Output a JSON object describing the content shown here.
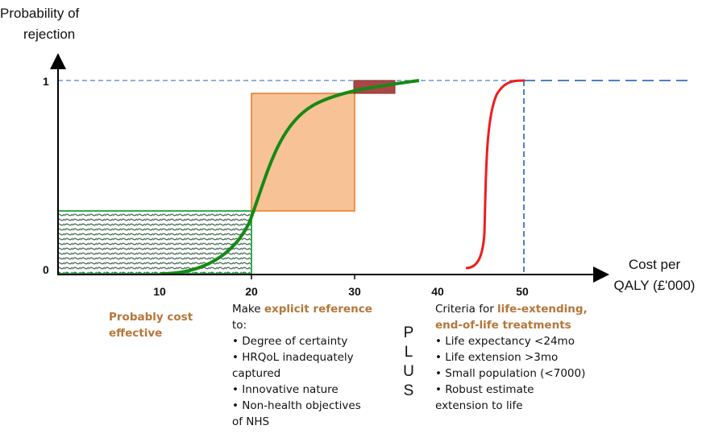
{
  "y_axis_title": [
    "Probability of",
    "rejection"
  ],
  "x_axis_title": [
    "Cost per",
    "QALY (£'000)"
  ],
  "y_ticks": [
    "0",
    "1"
  ],
  "x_ticks": [
    "10",
    "20",
    "30",
    "40",
    "50"
  ],
  "colors": {
    "green_curve": "#158a15",
    "green_region": "#2fae4f",
    "orange_fill": "#f7c296",
    "orange_edge": "#e57a24",
    "red_box": "#a94747",
    "red_curve": "#ee1d1d",
    "dashed": "#4f7fc9",
    "accent_text": "#b5763a"
  },
  "left_box": {
    "lines": [
      "Probably cost",
      "effective"
    ]
  },
  "middle_box": {
    "intro": "Make ",
    "highlight": "explicit reference",
    "line2": "to:",
    "bullets": [
      "• Degree of certainty",
      "• HRQoL inadequately",
      "captured",
      "• Innovative nature",
      "• Non-health objectives",
      "of NHS"
    ]
  },
  "plus_letters": [
    "P",
    "L",
    "U",
    "S"
  ],
  "right_box": {
    "intro": "Criteria for ",
    "highlight1": "life-extending,",
    "highlight2": "end-of-life treatments",
    "bullets": [
      "• Life expectancy <24mo",
      "• Life extension >3mo",
      "• Small population (<7000)",
      "• Robust estimate",
      "extension to life"
    ]
  }
}
